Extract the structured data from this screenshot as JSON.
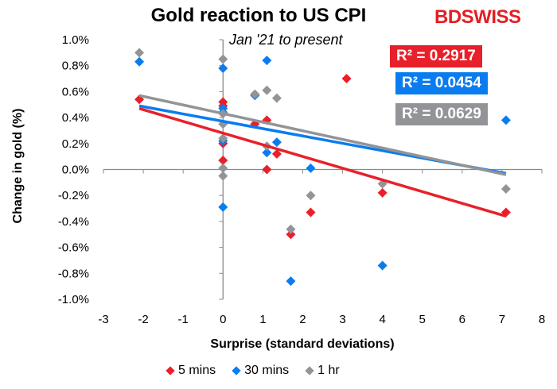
{
  "chart_data": {
    "type": "scatter",
    "title": "Gold reaction to US CPI",
    "subtitle": "Jan '21 to present",
    "logo": "BDSWISS",
    "xlabel": "Surprise (standard deviations)",
    "ylabel": "Change in gold (%)",
    "xlim": [
      -3,
      8
    ],
    "ylim": [
      -1.0,
      1.0
    ],
    "xticks": [
      "-3",
      "-2",
      "-1",
      "0",
      "1",
      "2",
      "3",
      "4",
      "5",
      "6",
      "7",
      "8"
    ],
    "yticks": [
      "1.0%",
      "0.8%",
      "0.6%",
      "0.4%",
      "0.2%",
      "0.0%",
      "-0.2%",
      "-0.4%",
      "-0.6%",
      "-0.8%",
      "-1.0%"
    ],
    "grid": false,
    "legend": "bottom",
    "series": [
      {
        "name": "5 mins",
        "color": "#e8202a",
        "r2": "R² = 0.2917",
        "trend": [
          [
            -2.1,
            0.47
          ],
          [
            7.1,
            -0.36
          ]
        ],
        "points": [
          [
            -2.1,
            0.54
          ],
          [
            0,
            0.52
          ],
          [
            0,
            0.49
          ],
          [
            0,
            0.2
          ],
          [
            0,
            0.07
          ],
          [
            0.8,
            0.35
          ],
          [
            1.1,
            0.38
          ],
          [
            1.1,
            0.0
          ],
          [
            1.35,
            0.12
          ],
          [
            1.7,
            -0.5
          ],
          [
            2.2,
            -0.33
          ],
          [
            3.1,
            0.7
          ],
          [
            4.0,
            -0.18
          ],
          [
            7.1,
            -0.33
          ]
        ]
      },
      {
        "name": "30 mins",
        "color": "#0a7cf0",
        "r2": "R² = 0.0454",
        "trend": [
          [
            -2.1,
            0.49
          ],
          [
            7.1,
            -0.03
          ]
        ],
        "points": [
          [
            -2.1,
            0.83
          ],
          [
            0,
            0.78
          ],
          [
            0,
            0.47
          ],
          [
            0,
            0.44
          ],
          [
            0,
            0.22
          ],
          [
            0,
            -0.29
          ],
          [
            0.8,
            0.57
          ],
          [
            1.1,
            0.84
          ],
          [
            1.1,
            0.13
          ],
          [
            1.35,
            0.21
          ],
          [
            1.7,
            -0.86
          ],
          [
            2.2,
            0.01
          ],
          [
            4.0,
            -0.74
          ],
          [
            7.1,
            0.38
          ]
        ]
      },
      {
        "name": "1 hr",
        "color": "#929497",
        "r2": "R² = 0.0629",
        "trend": [
          [
            -2.1,
            0.57
          ],
          [
            7.1,
            -0.04
          ]
        ],
        "points": [
          [
            -2.1,
            0.9
          ],
          [
            0,
            0.85
          ],
          [
            0,
            0.43
          ],
          [
            0,
            0.35
          ],
          [
            0,
            0.24
          ],
          [
            0,
            0.01
          ],
          [
            0,
            -0.05
          ],
          [
            0.8,
            0.58
          ],
          [
            1.1,
            0.61
          ],
          [
            1.35,
            0.55
          ],
          [
            1.1,
            0.18
          ],
          [
            1.7,
            -0.46
          ],
          [
            2.2,
            -0.2
          ],
          [
            4.0,
            -0.11
          ],
          [
            7.1,
            -0.15
          ]
        ]
      }
    ]
  }
}
